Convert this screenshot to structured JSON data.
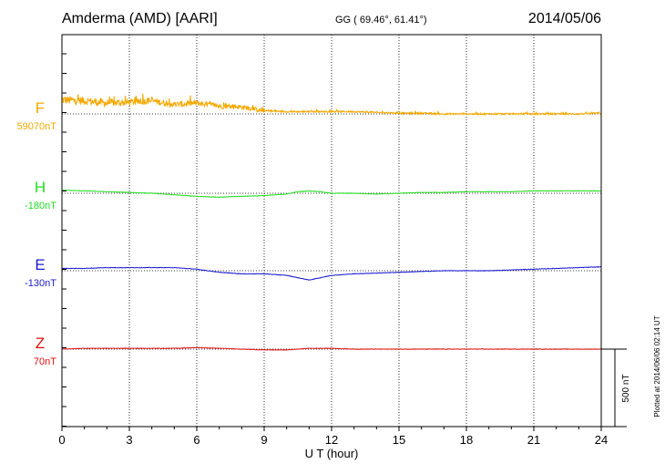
{
  "header": {
    "station": "Amderma (AMD)  [AARI]",
    "coords": "GG ( 69.46°,  61.41°)",
    "date": "2014/05/06"
  },
  "footer_note": "Plotted at 2014/06/06 02:14 UT",
  "scale_bar_label": "500 nT",
  "chart_data": {
    "type": "line",
    "title": "Amderma (AMD)  [AARI]",
    "xlabel": "U T (hour)",
    "xlim": [
      0,
      24
    ],
    "xticks": [
      "0",
      "3",
      "6",
      "9",
      "12",
      "15",
      "18",
      "21",
      "24"
    ],
    "grid": true,
    "scale_nT": 500,
    "series": [
      {
        "name": "F",
        "baseline_label": "59070nT",
        "color": "#f5a800",
        "noisy": true,
        "x": [
          0,
          1,
          2,
          3,
          4,
          5,
          6,
          7,
          8,
          9,
          10,
          11,
          12,
          13,
          14,
          15,
          16,
          17,
          18,
          19,
          20,
          21,
          22,
          23,
          24
        ],
        "values": [
          90,
          85,
          70,
          75,
          85,
          60,
          70,
          50,
          45,
          20,
          15,
          15,
          15,
          15,
          10,
          5,
          5,
          0,
          0,
          0,
          0,
          0,
          0,
          0,
          5
        ]
      },
      {
        "name": "H",
        "baseline_label": "-180nT",
        "color": "#22dd22",
        "noisy": false,
        "x": [
          0,
          1,
          2,
          3,
          4,
          5,
          6,
          7,
          8,
          9,
          10,
          10.5,
          11,
          11.5,
          12,
          13,
          14,
          15,
          16,
          17,
          18,
          19,
          20,
          21,
          22,
          23,
          24
        ],
        "values": [
          20,
          15,
          10,
          5,
          0,
          -10,
          -20,
          -25,
          -20,
          -15,
          -5,
          10,
          15,
          10,
          0,
          0,
          -5,
          0,
          5,
          5,
          10,
          10,
          10,
          15,
          15,
          15,
          15
        ]
      },
      {
        "name": "E",
        "baseline_label": "-130nT",
        "color": "#1a1ad0",
        "noisy": false,
        "x": [
          0,
          1,
          2,
          3,
          4,
          5,
          6,
          7,
          8,
          9,
          10,
          10.5,
          11,
          11.5,
          12,
          13,
          14,
          15,
          16,
          17,
          18,
          19,
          20,
          21,
          22,
          23,
          24
        ],
        "values": [
          15,
          15,
          20,
          20,
          20,
          20,
          10,
          -10,
          -20,
          -20,
          -30,
          -45,
          -60,
          -45,
          -30,
          -20,
          -15,
          -10,
          -5,
          0,
          0,
          0,
          5,
          10,
          15,
          20,
          25
        ]
      },
      {
        "name": "Z",
        "baseline_label": "70nT",
        "color": "#dd1111",
        "noisy": false,
        "x": [
          0,
          1,
          2,
          3,
          4,
          5,
          6,
          7,
          8,
          9,
          10,
          11,
          12,
          13,
          14,
          15,
          16,
          17,
          18,
          19,
          20,
          21,
          22,
          23,
          24
        ],
        "values": [
          0,
          5,
          5,
          5,
          5,
          5,
          10,
          5,
          0,
          -5,
          -5,
          5,
          5,
          0,
          0,
          0,
          0,
          0,
          0,
          0,
          0,
          0,
          0,
          0,
          0
        ]
      }
    ]
  }
}
